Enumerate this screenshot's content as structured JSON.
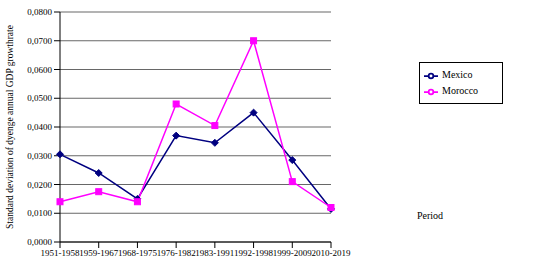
{
  "chart_data": {
    "type": "line",
    "ylabel": "Standard deviation of dyenge annual GDP growthrate",
    "xlabel": "Period",
    "categories": [
      "1951-1958",
      "1959-1967",
      "1968-1975",
      "1976-1982",
      "1983-1991",
      "1992-1998",
      "1999-2009",
      "2010-2019"
    ],
    "series": [
      {
        "name": "Mexico",
        "color": "#000080",
        "marker": "diamond",
        "values": [
          0.0305,
          0.024,
          0.015,
          0.037,
          0.0345,
          0.045,
          0.0285,
          0.0115
        ]
      },
      {
        "name": "Morocco",
        "color": "#ff00ff",
        "marker": "square",
        "values": [
          0.014,
          0.0175,
          0.014,
          0.048,
          0.0405,
          0.07,
          0.021,
          0.012
        ]
      }
    ],
    "ylim": [
      0,
      0.08
    ],
    "yticks": [
      {
        "value": 0,
        "label": "0,0000"
      },
      {
        "value": 0.01,
        "label": "0,0100"
      },
      {
        "value": 0.02,
        "label": "0,0200"
      },
      {
        "value": 0.03,
        "label": "0,0300"
      },
      {
        "value": 0.04,
        "label": "0,0400"
      },
      {
        "value": 0.05,
        "label": "0,0500"
      },
      {
        "value": 0.06,
        "label": "0,0600"
      },
      {
        "value": 0.07,
        "label": "0,0700"
      },
      {
        "value": 0.08,
        "label": "0,0800"
      }
    ],
    "grid": true,
    "legend": "right"
  }
}
